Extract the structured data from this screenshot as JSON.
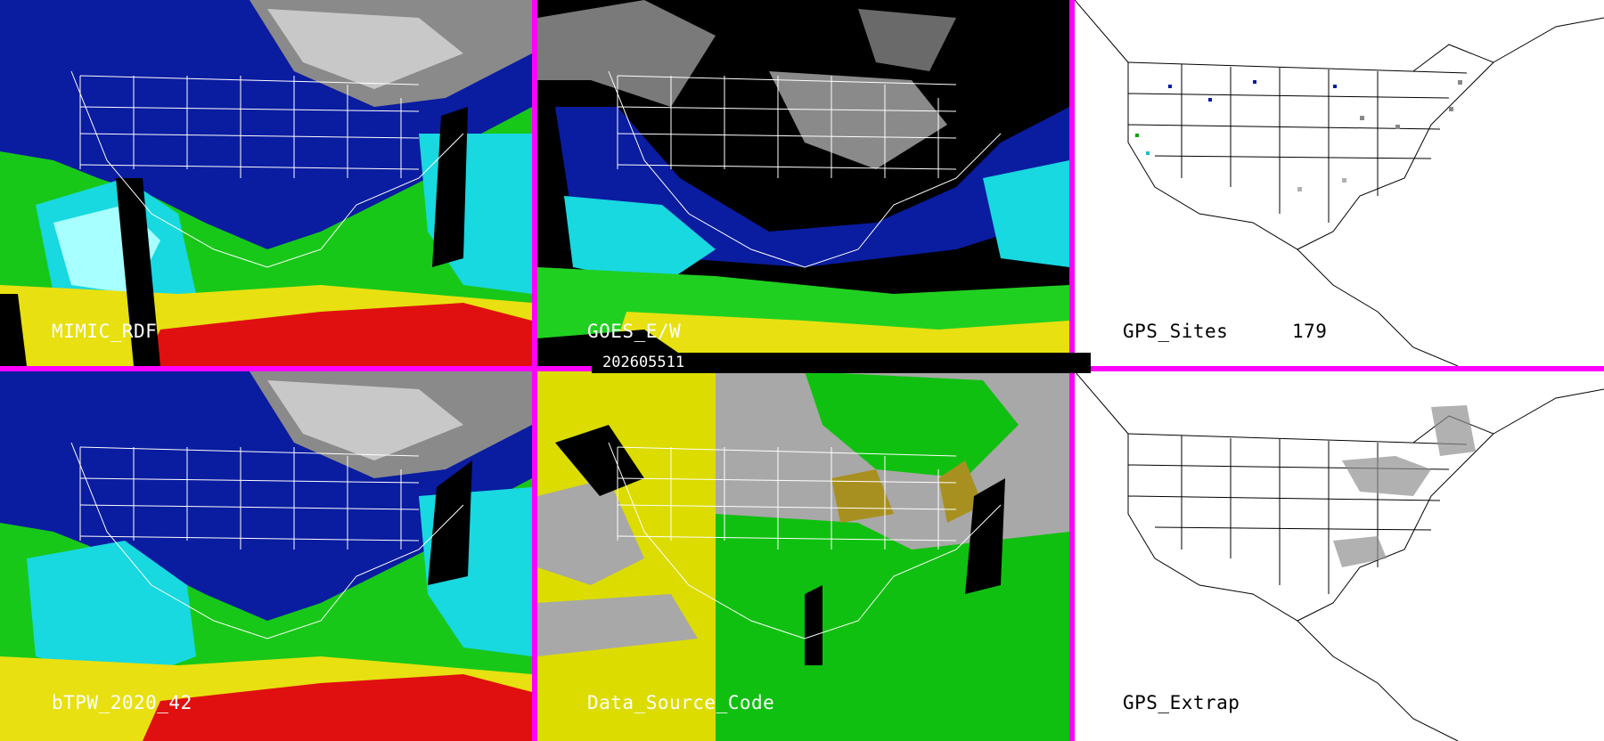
{
  "panels": [
    {
      "id": "p1",
      "label": "MIMIC_RDF"
    },
    {
      "id": "p2",
      "label": "GOES_E/W"
    },
    {
      "id": "p3",
      "label": "GPS_Sites",
      "count": "179"
    },
    {
      "id": "p4",
      "label": "bTPW_2020_42"
    },
    {
      "id": "p5",
      "label": "Data_Source_Code"
    },
    {
      "id": "p6",
      "label": "GPS_Extrap"
    }
  ],
  "timestamp": "202605511",
  "colors": {
    "border": "#ff00ff",
    "tpw_dry": "#0a1ca0",
    "tpw_mid": "#18d8e0",
    "tpw_green": "#20d020",
    "tpw_yellow": "#e8e010",
    "tpw_red": "#e01010",
    "data_yellow": "#dcdc00",
    "data_green": "#10c010",
    "data_gray": "#a8a8a8"
  }
}
